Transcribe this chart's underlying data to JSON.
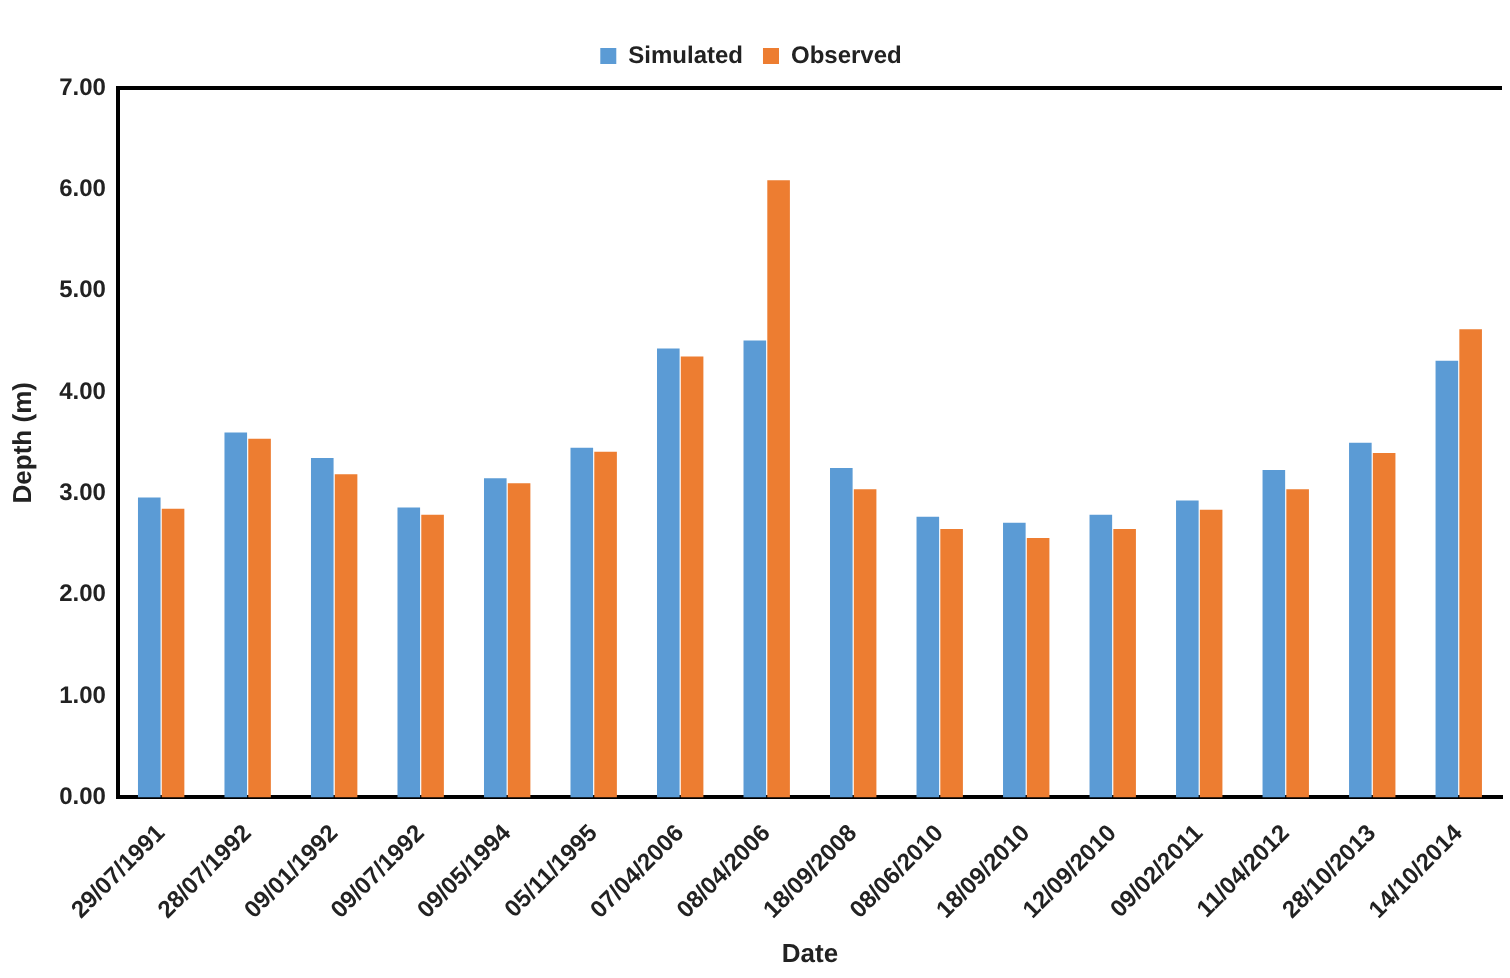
{
  "chart_data": {
    "type": "bar",
    "xlabel": "Date",
    "ylabel": "Depth (m)",
    "categories": [
      "29/07/1991",
      "28/07/1992",
      "09/01/1992",
      "09/07/1992",
      "09/05/1994",
      "05/11/1995",
      "07/04/2006",
      "08/04/2006",
      "18/09/2008",
      "08/06/2010",
      "18/09/2010",
      "12/09/2010",
      "09/02/2011",
      "11/04/2012",
      "28/10/2013",
      "14/10/2014"
    ],
    "series": [
      {
        "name": "Simulated",
        "color": "#5b9bd5",
        "values": [
          2.96,
          3.6,
          3.35,
          2.86,
          3.15,
          3.45,
          4.43,
          4.51,
          3.25,
          2.77,
          2.71,
          2.79,
          2.93,
          3.23,
          3.5,
          4.31
        ]
      },
      {
        "name": "Observed",
        "color": "#ed7d31",
        "values": [
          2.85,
          3.54,
          3.19,
          2.79,
          3.1,
          3.41,
          4.35,
          6.09,
          3.04,
          2.65,
          2.56,
          2.65,
          2.84,
          3.04,
          3.4,
          4.62
        ]
      }
    ],
    "ylim": [
      0,
      7
    ],
    "yticks": [
      {
        "value": 0,
        "label": "0.00"
      },
      {
        "value": 1,
        "label": "1.00"
      },
      {
        "value": 2,
        "label": "2.00"
      },
      {
        "value": 3,
        "label": "3.00"
      },
      {
        "value": 4,
        "label": "4.00"
      },
      {
        "value": 5,
        "label": "5.00"
      },
      {
        "value": 6,
        "label": "6.00"
      },
      {
        "value": 7,
        "label": "7.00"
      }
    ],
    "grid": false,
    "legend": "top"
  }
}
